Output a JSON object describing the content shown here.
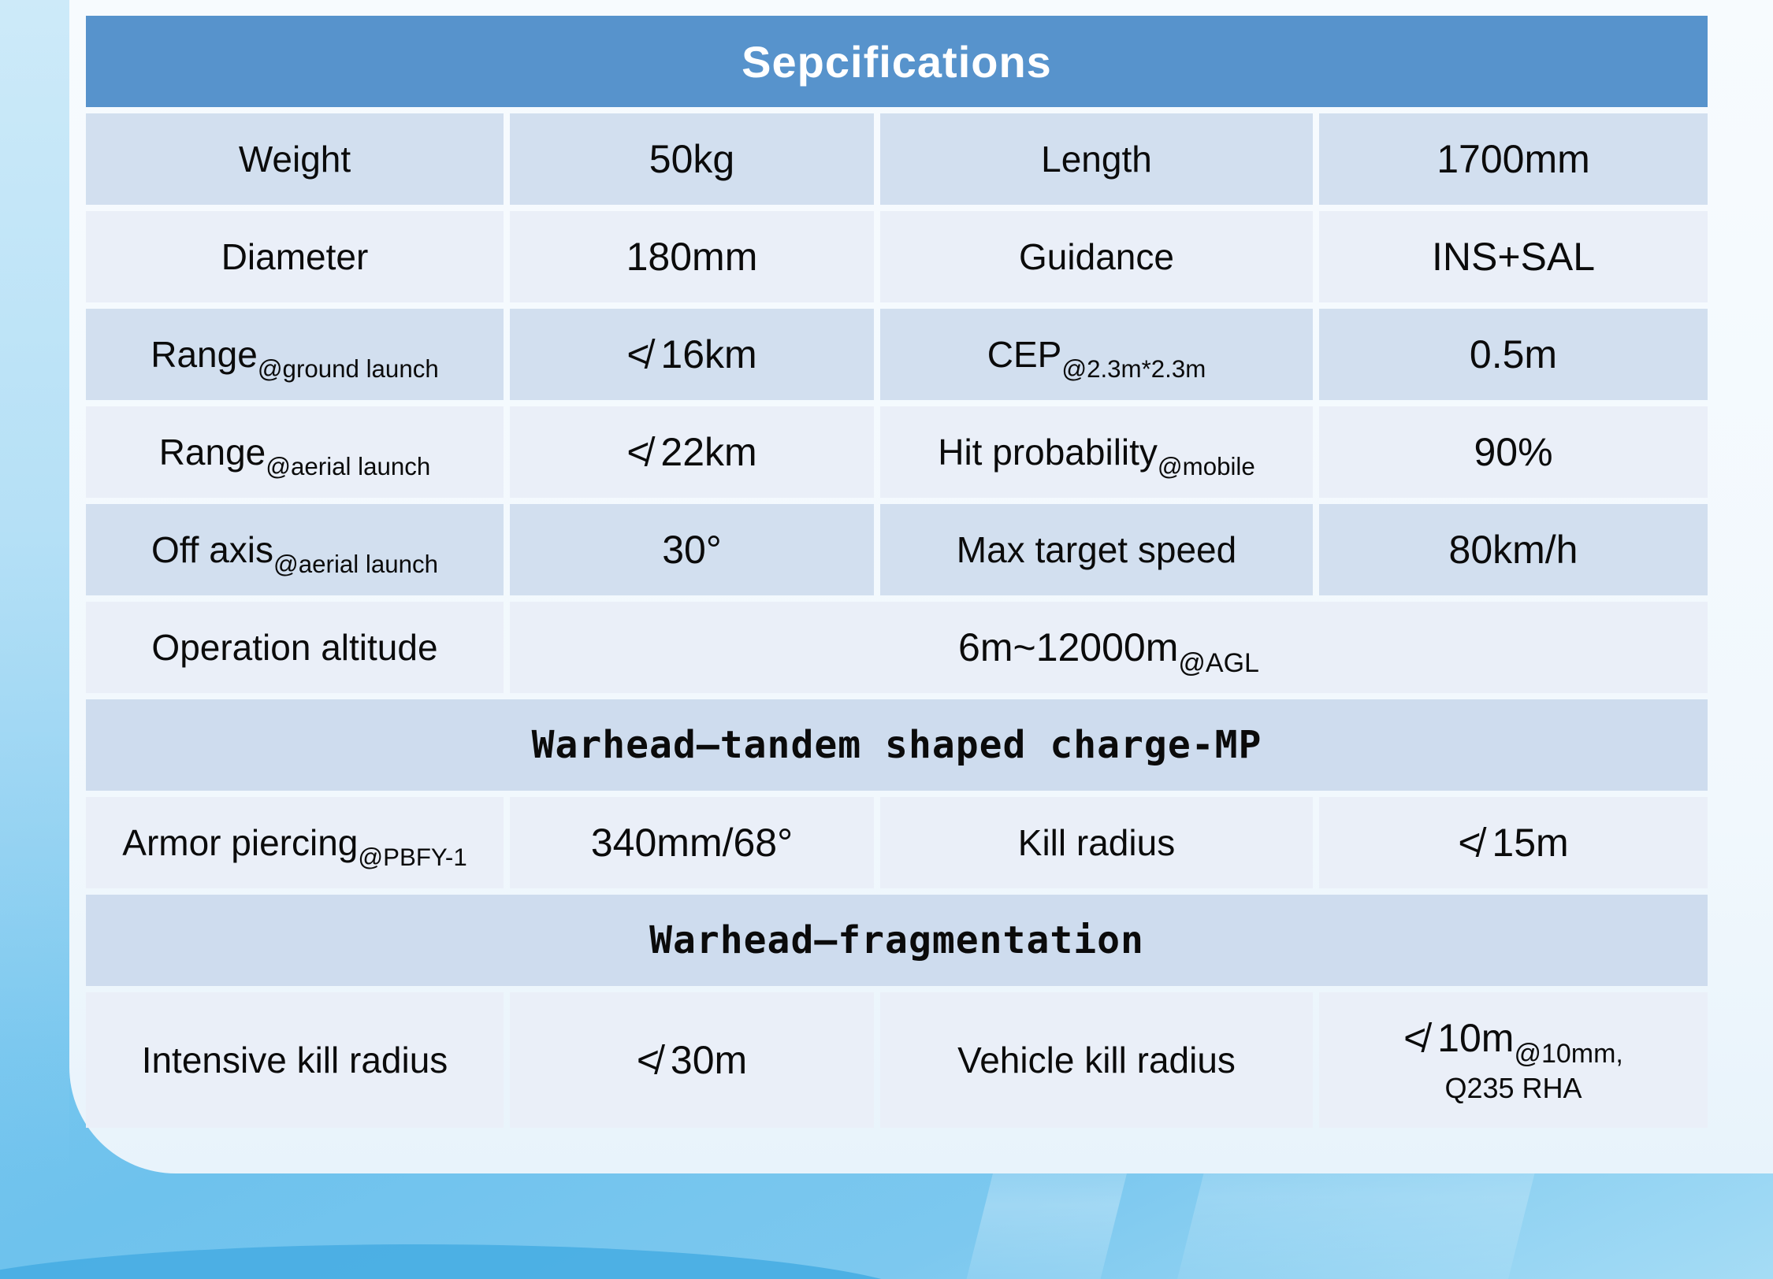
{
  "title": "Sepcifications",
  "rows": {
    "r1": {
      "c1": "Weight",
      "v1": "50kg",
      "c2": "Length",
      "v2": "1700mm"
    },
    "r2": {
      "c1": "Diameter",
      "v1": "180mm",
      "c2": "Guidance",
      "v2": "INS+SAL"
    },
    "r3": {
      "c1": "Range",
      "c1sub": "@ground launch",
      "v1": "≮ 16km",
      "c2": "CEP",
      "c2sub": "@2.3m*2.3m",
      "v2": "0.5m"
    },
    "r4": {
      "c1": "Range",
      "c1sub": "@aerial launch",
      "v1": "≮ 22km",
      "c2": "Hit probability",
      "c2sub": "@mobile",
      "v2": "90%"
    },
    "r5": {
      "c1": "Off axis",
      "c1sub": "@aerial launch",
      "v1": "30°",
      "c2": "Max target speed",
      "v2": "80km/h"
    },
    "r6": {
      "c1": "Operation altitude",
      "v1": "6m~12000m",
      "v1sub": "@AGL"
    },
    "h1": {
      "text": "Warhead—tandem shaped charge-MP"
    },
    "r7": {
      "c1": "Armor piercing",
      "c1sub": "@PBFY-1",
      "v1": "340mm/68°",
      "c2": "Kill radius",
      "v2": "≮ 15m"
    },
    "h2": {
      "text": "Warhead—fragmentation"
    },
    "r8": {
      "c1": "Intensive kill radius",
      "v1": "≮ 30m",
      "c2": "Vehicle kill radius",
      "v2": "≮ 10m",
      "v2sub": "@10mm,",
      "v2line2": "Q235 RHA"
    }
  },
  "colors": {
    "title_bar": "#5793CC",
    "row_dark": "#D2DFEF",
    "row_light": "#EAEFF8",
    "section_header_row": "#CEDCEE",
    "panel": "#F3FAFE",
    "background_blue": "#6EC2ED",
    "left_strip": "#BFE5F8",
    "bottom_band": "#45ACE2",
    "text": "#0B0B0B",
    "title_text": "#FFFFFF"
  }
}
